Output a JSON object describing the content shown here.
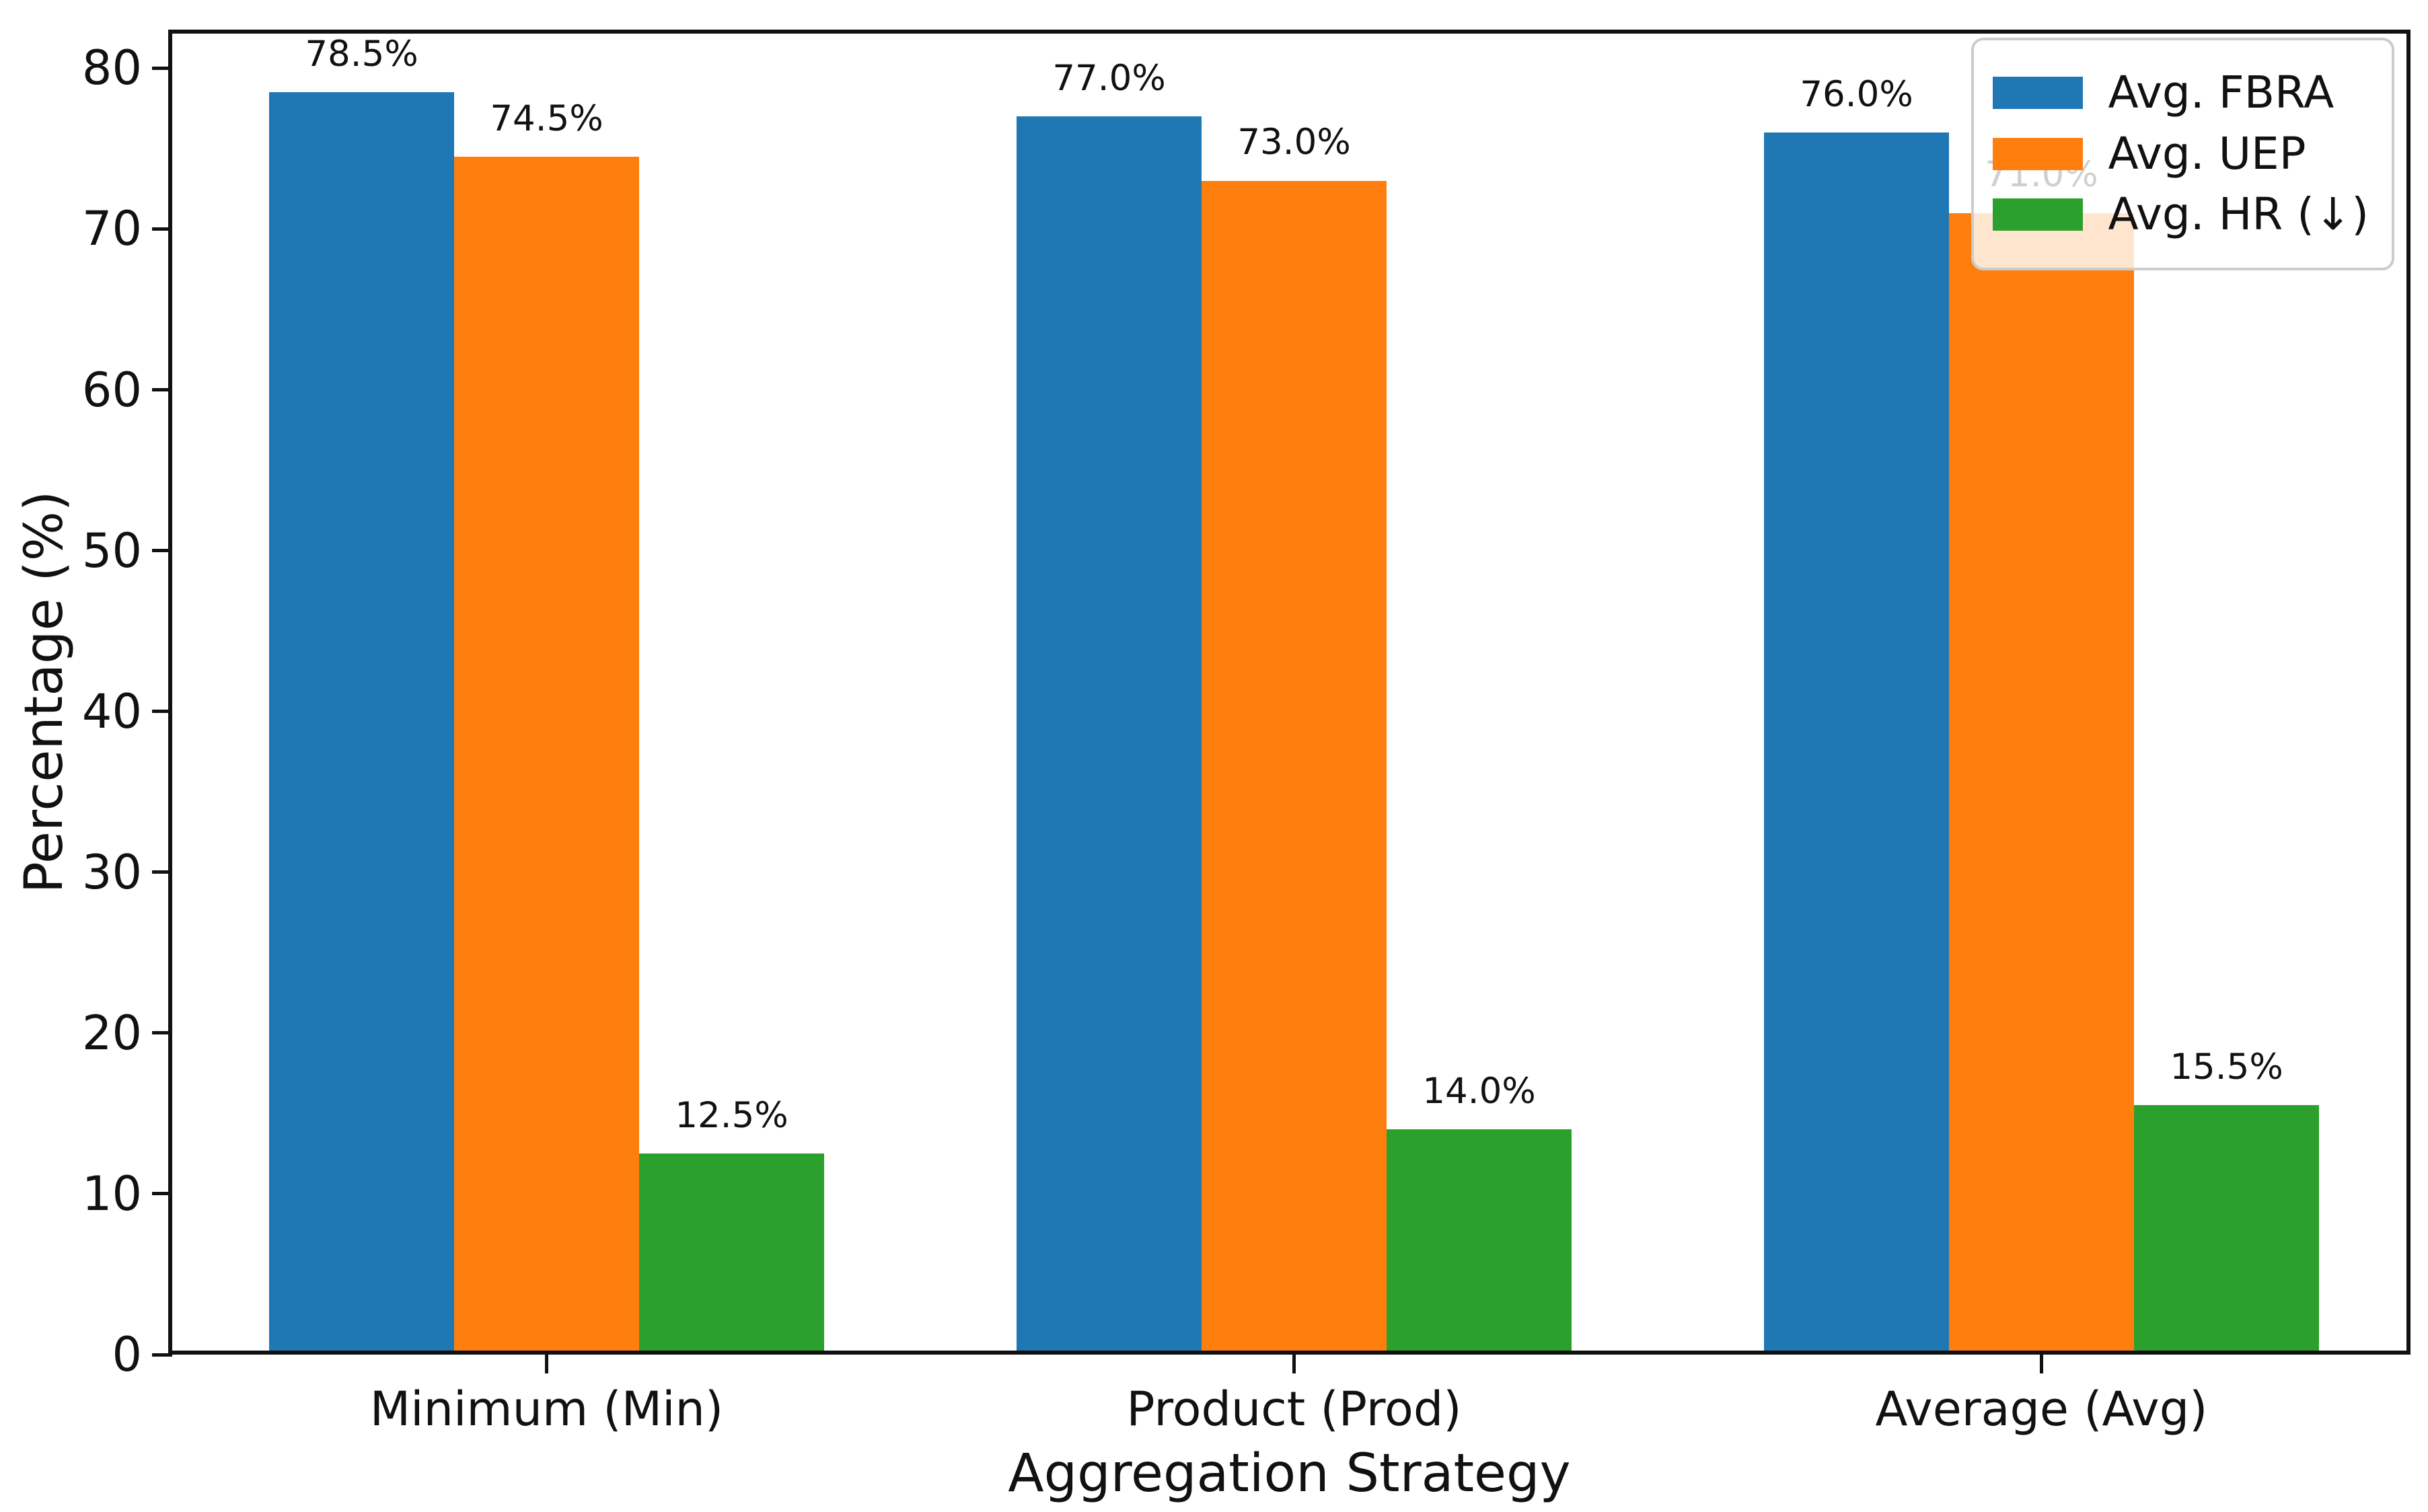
{
  "figure": {
    "background": "#ffffff"
  },
  "chart_data": {
    "type": "bar",
    "title": "",
    "xlabel": "Aggregation Strategy",
    "ylabel": "Percentage (%)",
    "categories": [
      "Minimum (Min)",
      "Product (Prod)",
      "Average (Avg)"
    ],
    "series": [
      {
        "name": "Avg. FBRA",
        "color": "#1f77b4",
        "values": [
          78.5,
          77.0,
          76.0
        ],
        "bar_labels": [
          "78.5%",
          "77.0%",
          "76.0%"
        ]
      },
      {
        "name": "Avg. UEP",
        "color": "#ff7f0e",
        "values": [
          74.5,
          73.0,
          71.0
        ],
        "bar_labels": [
          "74.5%",
          "73.0%",
          "71.0%"
        ]
      },
      {
        "name": "Avg. HR (↓)",
        "color": "#2ca02c",
        "values": [
          12.5,
          14.0,
          15.5
        ],
        "bar_labels": [
          "12.5%",
          "14.0%",
          "15.5%"
        ]
      }
    ],
    "yticks": [
      "0",
      "10",
      "20",
      "30",
      "40",
      "50",
      "60",
      "70",
      "80"
    ],
    "ytick_values": [
      0,
      10,
      20,
      30,
      40,
      50,
      60,
      70,
      80
    ],
    "ylim": [
      0,
      82.4
    ],
    "grid": false,
    "legend_position": "upper right",
    "axis_color": "#111111",
    "text_color": "#111111"
  }
}
